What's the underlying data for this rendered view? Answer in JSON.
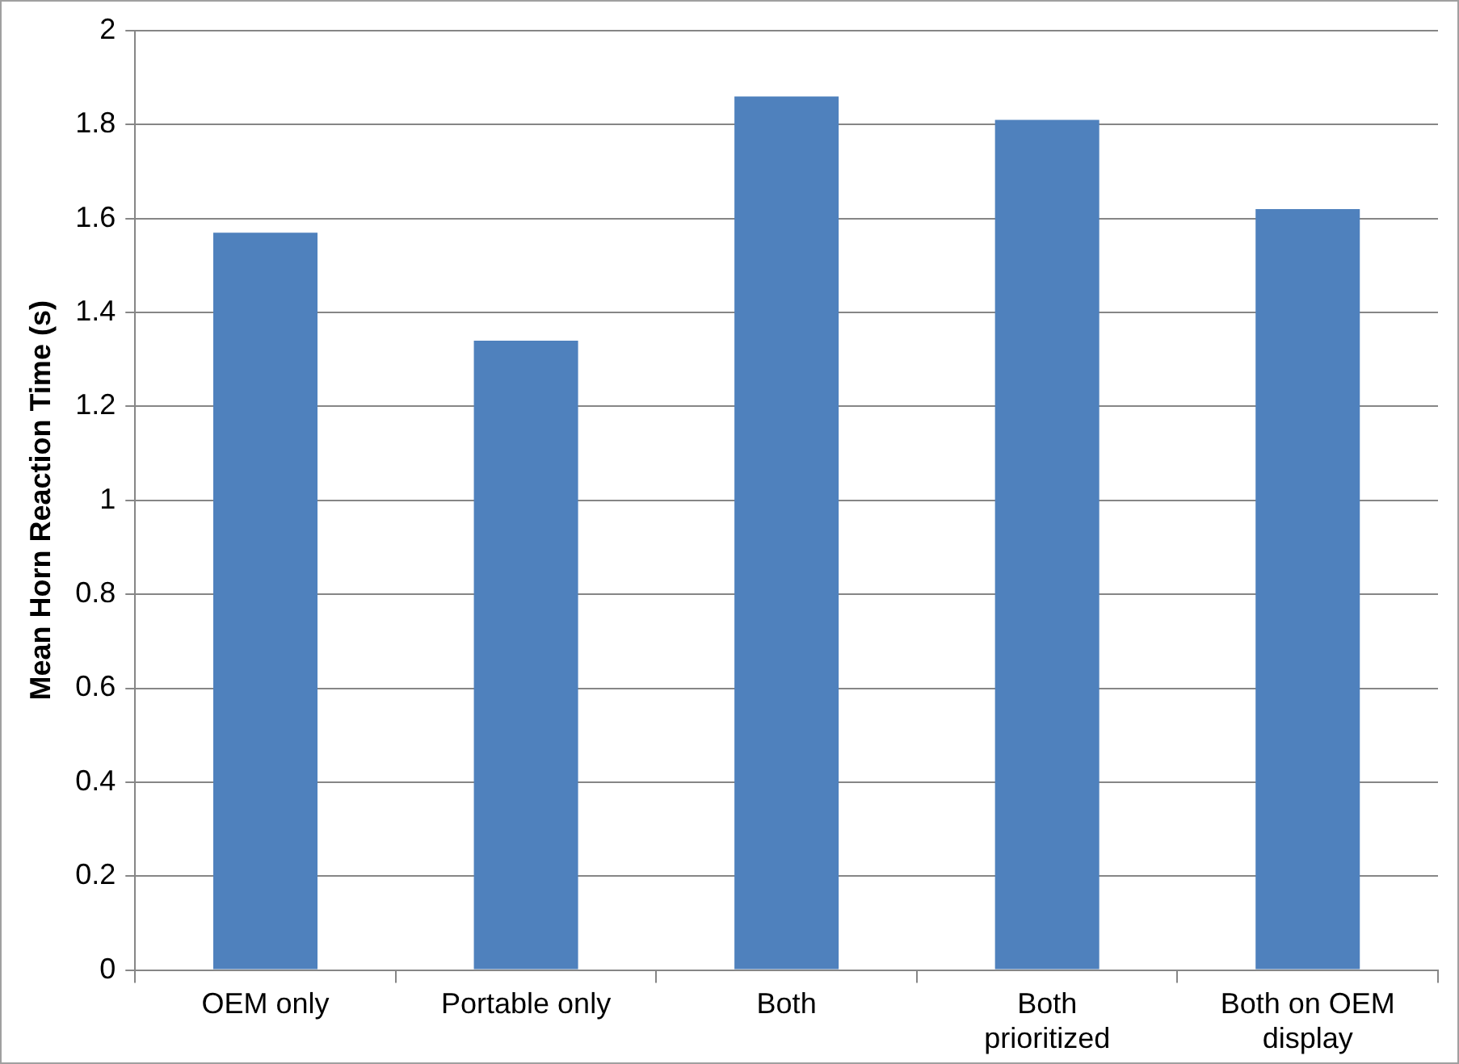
{
  "chart_data": {
    "type": "bar",
    "ylabel": "Mean Horn Reaction Time (s)",
    "categories": [
      "OEM only",
      "Portable only",
      "Both",
      "Both prioritized",
      "Both on OEM display"
    ],
    "values": [
      1.57,
      1.34,
      1.86,
      1.81,
      1.62
    ],
    "color": "#4f81bd",
    "ylim": [
      0,
      2
    ],
    "yticks": [
      0,
      0.2,
      0.4,
      0.6,
      0.8,
      1,
      1.2,
      1.4,
      1.6,
      1.8,
      2
    ],
    "grid": "y",
    "legend": false
  }
}
